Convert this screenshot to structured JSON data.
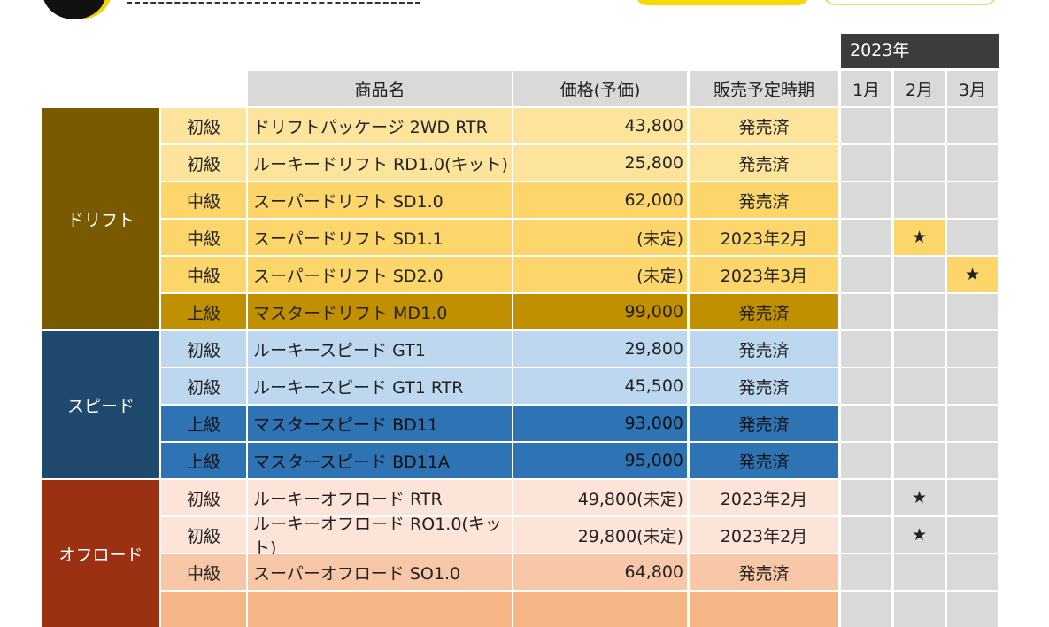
{
  "header": {
    "year": "2023年",
    "columns": [
      "商品名",
      "価格(予価)",
      "販売予定時期"
    ],
    "months": [
      "1月",
      "2月",
      "3月"
    ]
  },
  "star": "★",
  "categories": [
    {
      "label": "ドリフト",
      "color": "#7a5a00",
      "rows": [
        {
          "grade": "初級",
          "name": "ドリフトパッケージ 2WD RTR",
          "price": "43,800",
          "release": "発売済",
          "star_month": null,
          "bg": "#fde49c",
          "fg": "#222"
        },
        {
          "grade": "初級",
          "name": "ルーキードリフト RD1.0(キット)",
          "price": "25,800",
          "release": "発売済",
          "star_month": null,
          "bg": "#fde49c",
          "fg": "#222"
        },
        {
          "grade": "中級",
          "name": "スーパードリフト SD1.0",
          "price": "62,000",
          "release": "発売済",
          "star_month": null,
          "bg": "#fcd66a",
          "fg": "#222"
        },
        {
          "grade": "中級",
          "name": "スーパードリフト SD1.1",
          "price": "(未定)",
          "release": "2023年2月",
          "star_month": 1,
          "bg": "#fcd66a",
          "fg": "#222"
        },
        {
          "grade": "中級",
          "name": "スーパードリフト SD2.0",
          "price": "(未定)",
          "release": "2023年3月",
          "star_month": 2,
          "bg": "#fcd66a",
          "fg": "#222"
        },
        {
          "grade": "上級",
          "name": "マスタードリフト MD1.0",
          "price": "99,000",
          "release": "発売済",
          "star_month": null,
          "bg": "#c09000",
          "fg": "#222"
        }
      ]
    },
    {
      "label": "スピード",
      "color": "#1f4a6e",
      "rows": [
        {
          "grade": "初級",
          "name": "ルーキースピード GT1",
          "price": "29,800",
          "release": "発売済",
          "star_month": null,
          "bg": "#bdd7ee",
          "fg": "#222"
        },
        {
          "grade": "初級",
          "name": "ルーキースピード GT1 RTR",
          "price": "45,500",
          "release": "発売済",
          "star_month": null,
          "bg": "#bdd7ee",
          "fg": "#222"
        },
        {
          "grade": "上級",
          "name": "マスタースピード BD11",
          "price": "93,000",
          "release": "発売済",
          "star_month": null,
          "bg": "#2e74b5",
          "fg": "#111"
        },
        {
          "grade": "上級",
          "name": "マスタースピード BD11A",
          "price": "95,000",
          "release": "発売済",
          "star_month": null,
          "bg": "#2e74b5",
          "fg": "#111"
        }
      ]
    },
    {
      "label": "オフロード",
      "color": "#9b3112",
      "rows": [
        {
          "grade": "初級",
          "name": "ルーキーオフロード RTR",
          "price": "49,800(未定)",
          "release": "2023年2月",
          "star_month": 1,
          "bg": "#fde4d8",
          "fg": "#222"
        },
        {
          "grade": "初級",
          "name": "ルーキーオフロード RO1.0(キット)",
          "price": "29,800(未定)",
          "release": "2023年2月",
          "star_month": 1,
          "bg": "#fde4d8",
          "fg": "#222"
        },
        {
          "grade": "中級",
          "name": "スーパーオフロード SO1.0",
          "price": "64,800",
          "release": "発売済",
          "star_month": null,
          "bg": "#f7c7a7",
          "fg": "#222"
        },
        {
          "grade": "",
          "name": "",
          "price": "",
          "release": "",
          "star_month": null,
          "bg": "#f5b585",
          "fg": "#222"
        }
      ]
    }
  ]
}
